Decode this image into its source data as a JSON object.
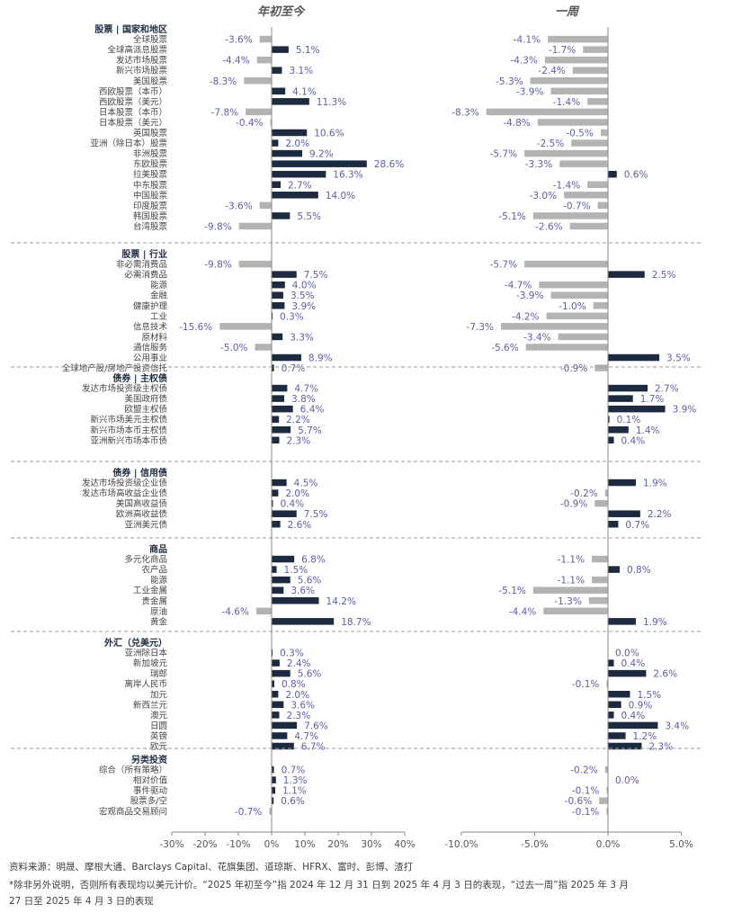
{
  "chart_data": {
    "type": "bar",
    "orientation": "horizontal",
    "panels": [
      {
        "title": "年初至今",
        "xlim": [
          -30,
          40
        ],
        "ticks": [
          "-30%",
          "-20%",
          "-10%",
          "0%",
          "10%",
          "20%",
          "30%",
          "40%"
        ],
        "tick_values": [
          -30,
          -20,
          -10,
          0,
          10,
          20,
          30,
          40
        ]
      },
      {
        "title": "一周",
        "xlim": [
          -10,
          5
        ],
        "ticks": [
          "-10.0%",
          "-5.0%",
          "0.0%",
          "5.0%"
        ],
        "tick_values": [
          -10,
          -5,
          0,
          5
        ]
      }
    ],
    "groups": [
      {
        "title": "股票 | 国家和地区",
        "items": [
          {
            "label": "全球股票",
            "ytd": -3.6,
            "ytd_label": "-3.6%",
            "week": -4.1,
            "week_label": "-4.1%"
          },
          {
            "label": "全球高派息股票",
            "ytd": 5.1,
            "ytd_label": "5.1%",
            "week": -1.7,
            "week_label": "-1.7%"
          },
          {
            "label": "发达市场股票",
            "ytd": -4.4,
            "ytd_label": "-4.4%",
            "week": -4.3,
            "week_label": "-4.3%"
          },
          {
            "label": "新兴市场股票",
            "ytd": 3.1,
            "ytd_label": "3.1%",
            "week": -2.4,
            "week_label": "-2.4%"
          },
          {
            "label": "美国股票",
            "ytd": -8.3,
            "ytd_label": "-8.3%",
            "week": -5.3,
            "week_label": "-5.3%"
          },
          {
            "label": "西欧股票（本币）",
            "ytd": 4.1,
            "ytd_label": "4.1%",
            "week": -3.9,
            "week_label": "-3.9%"
          },
          {
            "label": "西欧股票（美元）",
            "ytd": 11.3,
            "ytd_label": "11.3%",
            "week": -1.4,
            "week_label": "-1.4%"
          },
          {
            "label": "日本股票（本币）",
            "ytd": -7.8,
            "ytd_label": "-7.8%",
            "week": -8.3,
            "week_label": "-8.3%"
          },
          {
            "label": "日本股票（美元）",
            "ytd": -0.4,
            "ytd_label": "-0.4%",
            "week": -4.8,
            "week_label": "-4.8%"
          },
          {
            "label": "英国股票",
            "ytd": 10.6,
            "ytd_label": "10.6%",
            "week": -0.5,
            "week_label": "-0.5%"
          },
          {
            "label": "亚洲（除日本）股票",
            "ytd": 2.0,
            "ytd_label": "2.0%",
            "week": -2.5,
            "week_label": "-2.5%"
          },
          {
            "label": "非洲股票",
            "ytd": 9.2,
            "ytd_label": "9.2%",
            "week": -5.7,
            "week_label": "-5.7%"
          },
          {
            "label": "东欧股票",
            "ytd": 28.6,
            "ytd_label": "28.6%",
            "week": -3.3,
            "week_label": "-3.3%"
          },
          {
            "label": "拉美股票",
            "ytd": 16.3,
            "ytd_label": "16.3%",
            "week": 0.6,
            "week_label": "0.6%"
          },
          {
            "label": "中东股票",
            "ytd": 2.7,
            "ytd_label": "2.7%",
            "week": -1.4,
            "week_label": "-1.4%"
          },
          {
            "label": "中国股票",
            "ytd": 14.0,
            "ytd_label": "14.0%",
            "week": -3.0,
            "week_label": "-3.0%"
          },
          {
            "label": "印度股票",
            "ytd": -3.6,
            "ytd_label": "-3.6%",
            "week": -0.7,
            "week_label": "-0.7%"
          },
          {
            "label": "韩国股票",
            "ytd": 5.5,
            "ytd_label": "5.5%",
            "week": -5.1,
            "week_label": "-5.1%"
          },
          {
            "label": "台湾股票",
            "ytd": -9.8,
            "ytd_label": "-9.8%",
            "week": -2.6,
            "week_label": "-2.6%"
          }
        ]
      },
      {
        "title": "股票 | 行业",
        "items": [
          {
            "label": "非必需消费品",
            "ytd": -9.8,
            "ytd_label": "-9.8%",
            "week": -5.7,
            "week_label": "-5.7%"
          },
          {
            "label": "必需消费品",
            "ytd": 7.5,
            "ytd_label": "7.5%",
            "week": 2.5,
            "week_label": "2.5%"
          },
          {
            "label": "能源",
            "ytd": 4.0,
            "ytd_label": "4.0%",
            "week": -4.7,
            "week_label": "-4.7%"
          },
          {
            "label": "金融",
            "ytd": 3.5,
            "ytd_label": "3.5%",
            "week": -3.9,
            "week_label": "-3.9%"
          },
          {
            "label": "健康护理",
            "ytd": 3.9,
            "ytd_label": "3.9%",
            "week": -1.0,
            "week_label": "-1.0%"
          },
          {
            "label": "工业",
            "ytd": 0.3,
            "ytd_label": "0.3%",
            "week": -4.2,
            "week_label": "-4.2%"
          },
          {
            "label": "信息技术",
            "ytd": -15.6,
            "ytd_label": "-15.6%",
            "week": -7.3,
            "week_label": "-7.3%"
          },
          {
            "label": "原材料",
            "ytd": 3.3,
            "ytd_label": "3.3%",
            "week": -3.4,
            "week_label": "-3.4%"
          },
          {
            "label": "通信服务",
            "ytd": -5.0,
            "ytd_label": "-5.0%",
            "week": -5.6,
            "week_label": "-5.6%"
          },
          {
            "label": "公用事业",
            "ytd": 8.9,
            "ytd_label": "8.9%",
            "week": 3.5,
            "week_label": "3.5%"
          },
          {
            "label": "全球地产股/房地产投资信托",
            "ytd": 0.7,
            "ytd_label": "0.7%",
            "week": -0.9,
            "week_label": "-0.9%"
          }
        ]
      },
      {
        "title": "债券 | 主权债",
        "items": [
          {
            "label": "发达市场投资级主权债",
            "ytd": 4.7,
            "ytd_label": "4.7%",
            "week": 2.7,
            "week_label": "2.7%"
          },
          {
            "label": "美国政府债",
            "ytd": 3.8,
            "ytd_label": "3.8%",
            "week": 1.7,
            "week_label": "1.7%"
          },
          {
            "label": "欧盟主权债",
            "ytd": 6.4,
            "ytd_label": "6.4%",
            "week": 3.9,
            "week_label": "3.9%"
          },
          {
            "label": "新兴市场美元主权债",
            "ytd": 2.2,
            "ytd_label": "2.2%",
            "week": 0.1,
            "week_label": "0.1%"
          },
          {
            "label": "新兴市场本币主权债",
            "ytd": 5.7,
            "ytd_label": "5.7%",
            "week": 1.4,
            "week_label": "1.4%"
          },
          {
            "label": "亚洲新兴市场本币债",
            "ytd": 2.3,
            "ytd_label": "2.3%",
            "week": 0.4,
            "week_label": "0.4%"
          }
        ]
      },
      {
        "title": "债券 | 信用债",
        "items": [
          {
            "label": "发达市场投资级企业债",
            "ytd": 4.5,
            "ytd_label": "4.5%",
            "week": 1.9,
            "week_label": "1.9%"
          },
          {
            "label": "发达市场高收益企业债",
            "ytd": 2.0,
            "ytd_label": "2.0%",
            "week": -0.2,
            "week_label": "-0.2%"
          },
          {
            "label": "美国高收益债",
            "ytd": 0.4,
            "ytd_label": "0.4%",
            "week": -0.9,
            "week_label": "-0.9%"
          },
          {
            "label": "欧洲高收益债",
            "ytd": 7.5,
            "ytd_label": "7.5%",
            "week": 2.2,
            "week_label": "2.2%"
          },
          {
            "label": "亚洲美元债",
            "ytd": 2.6,
            "ytd_label": "2.6%",
            "week": 0.7,
            "week_label": "0.7%"
          }
        ]
      },
      {
        "title": "商品",
        "items": [
          {
            "label": "多元化商品",
            "ytd": 6.8,
            "ytd_label": "6.8%",
            "week": -1.1,
            "week_label": "-1.1%"
          },
          {
            "label": "农产品",
            "ytd": 1.5,
            "ytd_label": "1.5%",
            "week": 0.8,
            "week_label": "0.8%"
          },
          {
            "label": "能源",
            "ytd": 5.6,
            "ytd_label": "5.6%",
            "week": -1.1,
            "week_label": "-1.1%"
          },
          {
            "label": "工业金属",
            "ytd": 3.6,
            "ytd_label": "3.6%",
            "week": -5.1,
            "week_label": "-5.1%"
          },
          {
            "label": "贵金属",
            "ytd": 14.2,
            "ytd_label": "14.2%",
            "week": -1.3,
            "week_label": "-1.3%"
          },
          {
            "label": "原油",
            "ytd": -4.6,
            "ytd_label": "-4.6%",
            "week": -4.4,
            "week_label": "-4.4%"
          },
          {
            "label": "黄金",
            "ytd": 18.7,
            "ytd_label": "18.7%",
            "week": 1.9,
            "week_label": "1.9%"
          }
        ]
      },
      {
        "title": "外汇（兑美元）",
        "items": [
          {
            "label": "亚洲除日本",
            "ytd": 0.3,
            "ytd_label": "0.3%",
            "week": 0.0,
            "week_label": "0.0%"
          },
          {
            "label": "新加坡元",
            "ytd": 2.4,
            "ytd_label": "2.4%",
            "week": 0.4,
            "week_label": "0.4%"
          },
          {
            "label": "瑞郎",
            "ytd": 5.6,
            "ytd_label": "5.6%",
            "week": 2.6,
            "week_label": "2.6%"
          },
          {
            "label": "离岸人民币",
            "ytd": 0.8,
            "ytd_label": "0.8%",
            "week": -0.1,
            "week_label": "-0.1%"
          },
          {
            "label": "加元",
            "ytd": 2.0,
            "ytd_label": "2.0%",
            "week": 1.5,
            "week_label": "1.5%"
          },
          {
            "label": "新西兰元",
            "ytd": 3.6,
            "ytd_label": "3.6%",
            "week": 0.9,
            "week_label": "0.9%"
          },
          {
            "label": "澳元",
            "ytd": 2.3,
            "ytd_label": "2.3%",
            "week": 0.4,
            "week_label": "0.4%"
          },
          {
            "label": "日圆",
            "ytd": 7.6,
            "ytd_label": "7.6%",
            "week": 3.4,
            "week_label": "3.4%"
          },
          {
            "label": "英镑",
            "ytd": 4.7,
            "ytd_label": "4.7%",
            "week": 1.2,
            "week_label": "1.2%"
          },
          {
            "label": "欧元",
            "ytd": 6.7,
            "ytd_label": "6.7%",
            "week": 2.3,
            "week_label": "2.3%"
          }
        ]
      },
      {
        "title": "另类投资",
        "items": [
          {
            "label": "综合（所有策略）",
            "ytd": 0.7,
            "ytd_label": "0.7%",
            "week": -0.2,
            "week_label": "-0.2%"
          },
          {
            "label": "相对价值",
            "ytd": 1.3,
            "ytd_label": "1.3%",
            "week": 0.0,
            "week_label": "0.0%"
          },
          {
            "label": "事件驱动",
            "ytd": 1.1,
            "ytd_label": "1.1%",
            "week": -0.1,
            "week_label": "-0.1%"
          },
          {
            "label": "股票多/空",
            "ytd": 0.6,
            "ytd_label": "0.6%",
            "week": -0.6,
            "week_label": "-0.6%"
          },
          {
            "label": "宏观商品交易顾问",
            "ytd": -0.7,
            "ytd_label": "-0.7%",
            "week": -0.1,
            "week_label": "-0.1%"
          }
        ]
      }
    ],
    "colors": {
      "positive": "#1c2b3f",
      "negative": "#b3b3b3",
      "value_text": "#5b5ea6",
      "label_text": "#444444",
      "group_title": "#1c2b3f"
    }
  },
  "footnotes": [
    "资料来源：明晟、摩根大通、Barclays Capital、花旗集团、道琼斯、HFRX、富时、彭博、渣打",
    "*除非另外说明，否则所有表现均以美元计价。“2025 年初至今”指 2024 年 12 月 31 日到 2025 年 4 月 3 日的表现，“过去一周”指 2025 年 3 月",
    "27 日至 2025 年 4 月 3 日的表现"
  ]
}
